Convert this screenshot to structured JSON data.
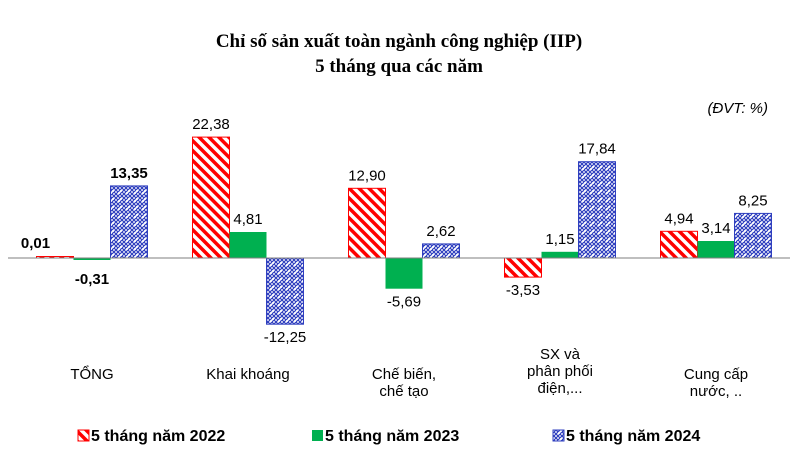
{
  "chart_data": {
    "type": "bar",
    "title": "Chỉ số sản xuất toàn ngành công nghiệp (IIP)",
    "subtitle": "5 tháng qua các năm",
    "unit_note": "(ĐVT: %)",
    "categories": [
      [
        "TỔNG"
      ],
      [
        "Khai  khoáng"
      ],
      [
        "Chế biến,",
        "chế tạo"
      ],
      [
        "SX và",
        "phân phối",
        "điện,..."
      ],
      [
        "Cung cấp",
        "nước, .."
      ]
    ],
    "series": [
      {
        "name": "5 tháng năm 2022",
        "color": "#ff0000",
        "pattern": "diagonal-hatch",
        "values": [
          0.01,
          22.38,
          12.9,
          -3.53,
          4.94
        ],
        "labels": [
          "",
          "22,38",
          "12,90",
          "-3,53",
          "4,94"
        ]
      },
      {
        "name": "5 tháng năm 2023",
        "color": "#00b050",
        "pattern": "solid",
        "values": [
          -0.31,
          4.81,
          -5.69,
          1.15,
          3.14
        ],
        "labels": [
          "-0,31",
          "4,81",
          "-5,69",
          "1,15",
          "3,14"
        ]
      },
      {
        "name": "5 tháng năm 2024",
        "color": "#2f3fbf",
        "pattern": "weave",
        "values": [
          13.35,
          -12.25,
          2.62,
          17.84,
          8.25
        ],
        "labels": [
          "13,35",
          "-12,25",
          "2,62",
          "17,84",
          "8,25"
        ]
      }
    ],
    "total_first_label": "0,01",
    "bold_category_index": 0,
    "ylim": [
      -15,
      25
    ],
    "grid": false,
    "legend_position": "bottom"
  }
}
